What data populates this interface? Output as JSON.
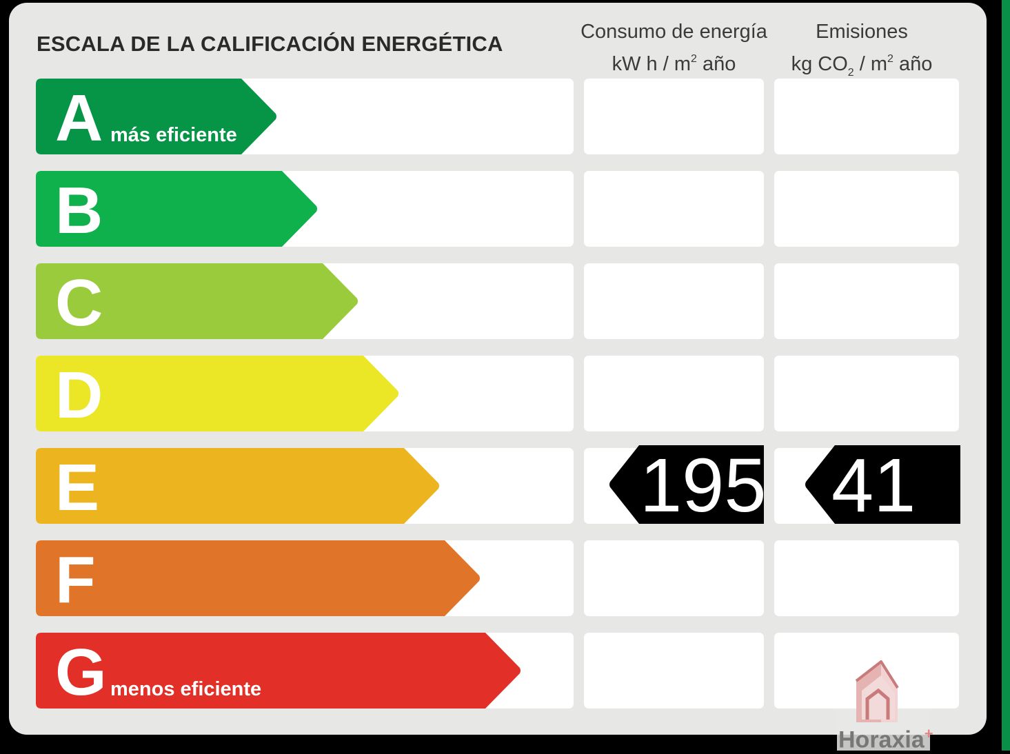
{
  "title": "ESCALA DE LA CALIFICACIÓN ENERGÉTICA",
  "columns": {
    "energy": {
      "line1": "Consumo de energía",
      "unit_prefix": "kW h  / m",
      "unit_sup": "2",
      "unit_suffix": " año"
    },
    "emissions": {
      "line1": "Emisiones",
      "unit_prefix": "kg CO",
      "unit_sub": "2",
      "unit_mid": "  / m",
      "unit_sup": "2",
      "unit_suffix": " año"
    }
  },
  "ratings": [
    {
      "letter": "A",
      "label": "más eficiente",
      "color": "#069547"
    },
    {
      "letter": "B",
      "label": "",
      "color": "#0eb14b"
    },
    {
      "letter": "C",
      "label": "",
      "color": "#9acb3c"
    },
    {
      "letter": "D",
      "label": "",
      "color": "#ebe626"
    },
    {
      "letter": "E",
      "label": "",
      "color": "#ecb520"
    },
    {
      "letter": "F",
      "label": "",
      "color": "#e07429"
    },
    {
      "letter": "G",
      "label": "menos eficiente",
      "color": "#e22f27"
    }
  ],
  "result": {
    "rating_index": 4,
    "energy_value": "195",
    "emissions_value": "41"
  },
  "logo": {
    "text": "Horaxia",
    "mark": "+"
  }
}
